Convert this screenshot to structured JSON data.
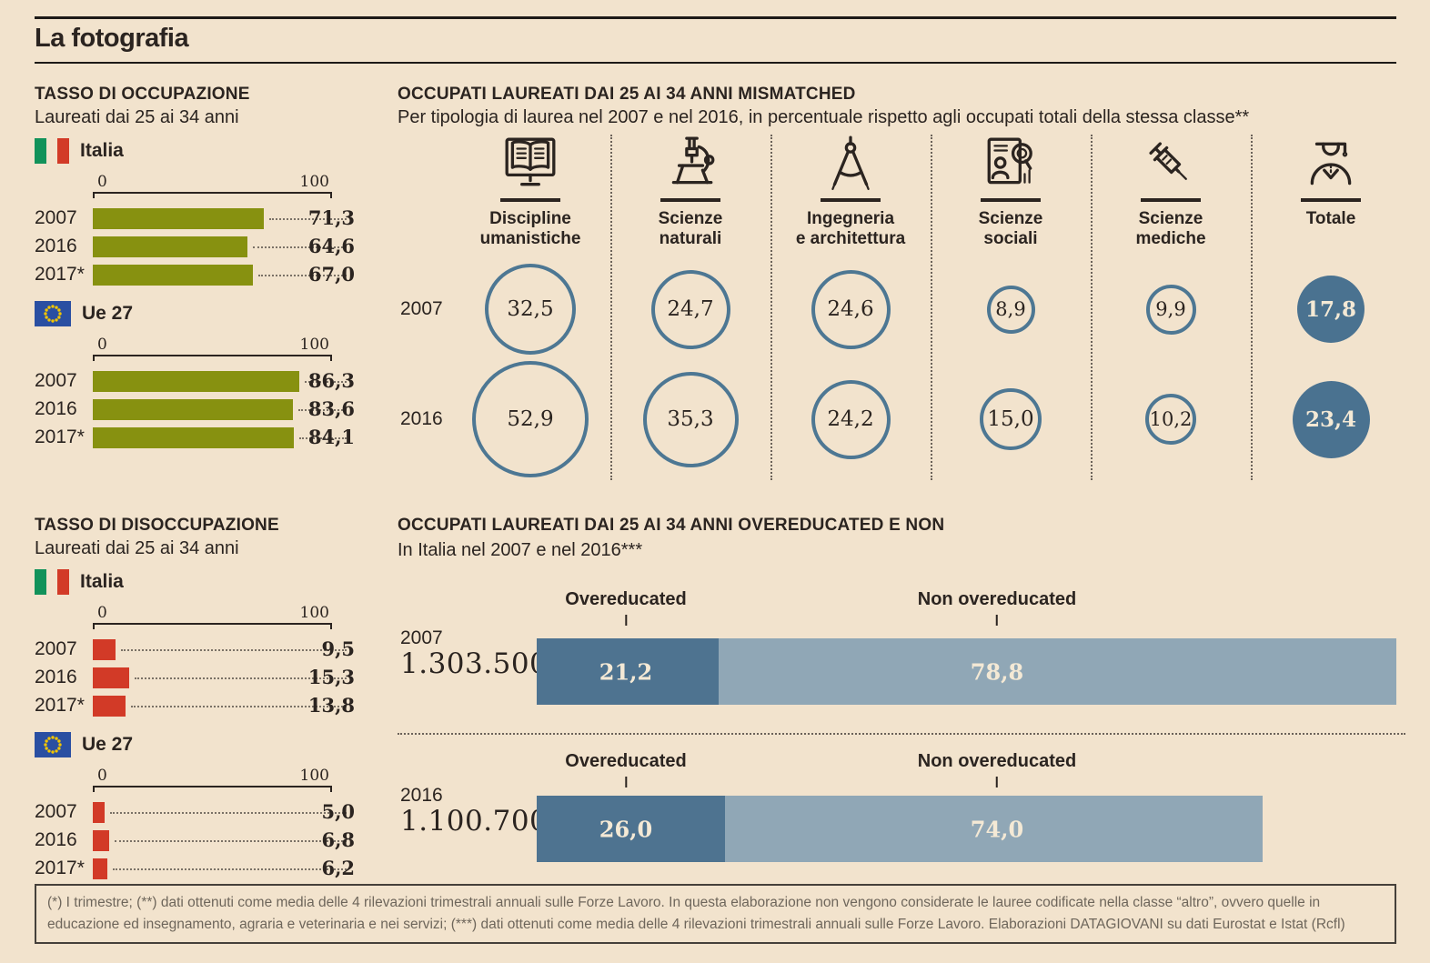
{
  "header": {
    "title": "La fotografia"
  },
  "occ": {
    "title": "TASSO DI OCCUPAZIONE",
    "subtitle": "Laureati dai 25 ai 34 anni",
    "axis": {
      "min": "0",
      "max": "100"
    },
    "groups": [
      {
        "legend": "Italia",
        "rows": [
          {
            "year": "2007",
            "value": 71.3,
            "label": "71,3"
          },
          {
            "year": "2016",
            "value": 64.6,
            "label": "64,6"
          },
          {
            "year": "2017*",
            "value": 67.0,
            "label": "67,0"
          }
        ]
      },
      {
        "legend": "Ue 27",
        "rows": [
          {
            "year": "2007",
            "value": 86.3,
            "label": "86,3"
          },
          {
            "year": "2016",
            "value": 83.6,
            "label": "83,6"
          },
          {
            "year": "2017*",
            "value": 84.1,
            "label": "84,1"
          }
        ]
      }
    ]
  },
  "dis": {
    "title": "TASSO DI DISOCCUPAZIONE",
    "subtitle": "Laureati dai 25 ai 34 anni",
    "axis": {
      "min": "0",
      "max": "100"
    },
    "groups": [
      {
        "legend": "Italia",
        "rows": [
          {
            "year": "2007",
            "value": 9.5,
            "label": "9,5"
          },
          {
            "year": "2016",
            "value": 15.3,
            "label": "15,3"
          },
          {
            "year": "2017*",
            "value": 13.8,
            "label": "13,8"
          }
        ]
      },
      {
        "legend": "Ue 27",
        "rows": [
          {
            "year": "2007",
            "value": 5.0,
            "label": "5,0"
          },
          {
            "year": "2016",
            "value": 6.8,
            "label": "6,8"
          },
          {
            "year": "2017*",
            "value": 6.2,
            "label": "6,2"
          }
        ]
      }
    ]
  },
  "mis": {
    "title": "OCCUPATI LAUREATI DAI 25 AI 34 ANNI MISMATCHED",
    "subtitle": "Per tipologia di laurea nel 2007 e nel 2016, in percentuale rispetto agli occupati totali della stessa classe**",
    "row_years": [
      "2007",
      "2016"
    ],
    "columns": [
      {
        "icon": "open-book-monitor-icon",
        "label": "Discipline\numanistiche",
        "v2007": 32.5,
        "l2007": "32,5",
        "v2016": 52.9,
        "l2016": "52,9"
      },
      {
        "icon": "microscope-icon",
        "label": "Scienze\nnaturali",
        "v2007": 24.7,
        "l2007": "24,7",
        "v2016": 35.3,
        "l2016": "35,3"
      },
      {
        "icon": "drafting-compass-icon",
        "label": "Ingegneria\ne architettura",
        "v2007": 24.6,
        "l2007": "24,6",
        "v2016": 24.2,
        "l2016": "24,2"
      },
      {
        "icon": "census-document-icon",
        "label": "Scienze\nsociali",
        "v2007": 8.9,
        "l2007": "8,9",
        "v2016": 15.0,
        "l2016": "15,0"
      },
      {
        "icon": "syringe-icon",
        "label": "Scienze\nmediche",
        "v2007": 9.9,
        "l2007": "9,9",
        "v2016": 10.2,
        "l2016": "10,2"
      },
      {
        "icon": "graduate-icon",
        "label": "Totale",
        "v2007": 17.8,
        "l2007": "17,8",
        "v2016": 23.4,
        "l2016": "23,4"
      }
    ]
  },
  "over": {
    "title": "OCCUPATI LAUREATI DAI 25 AI 34 ANNI OVEREDUCATED E NON",
    "subtitle": "In Italia nel 2007 e nel 2016***",
    "series_labels": [
      "Overeducated",
      "Non overeducated"
    ],
    "groups": [
      {
        "year": "2007",
        "total": "1.303.500",
        "total_value": 1303500,
        "over": 21.2,
        "over_label": "21,2",
        "non": 78.8,
        "non_label": "78,8"
      },
      {
        "year": "2016",
        "total": "1.100.700",
        "total_value": 1100700,
        "over": 26.0,
        "over_label": "26,0",
        "non": 74.0,
        "non_label": "74,0"
      }
    ]
  },
  "footnote": "(*) I trimestre; (**) dati ottenuti come media delle 4 rilevazioni trimestrali annuali sulle Forze Lavoro. In questa elaborazione non vengono considerate le lauree codificate nella classe “altro”, ovvero quelle in educazione ed insegnamento, agraria e veterinaria e nei servizi; (***) dati ottenuti come media delle 4 rilevazioni trimestrali annuali sulle Forze Lavoro. Elaborazioni DATAGIOVANI su dati Eurostat e Istat (Rcfl)",
  "colors": {
    "background": "#f2e3cd",
    "ink": "#2b2420",
    "olive_bar": "#879110",
    "red_bar": "#d23a27",
    "circle_stroke": "#4d7793",
    "circle_fill": "#4a7290",
    "stack_dark": "#4e7390",
    "stack_light": "#90a7b6",
    "cream_text": "#f4e9d5",
    "italy_green": "#12925a",
    "eu_blue": "#2a4fa2",
    "eu_star": "#f2c500"
  },
  "chart_data": [
    {
      "type": "bar",
      "orientation": "horizontal",
      "title": "TASSO DI OCCUPAZIONE",
      "subtitle": "Laureati dai 25 ai 34 anni",
      "categories": [
        "2007",
        "2016",
        "2017*"
      ],
      "xlim": [
        0,
        100
      ],
      "series": [
        {
          "name": "Italia",
          "values": [
            71.3,
            64.6,
            67.0
          ]
        },
        {
          "name": "Ue 27",
          "values": [
            86.3,
            83.6,
            84.1
          ]
        }
      ]
    },
    {
      "type": "bar",
      "orientation": "horizontal",
      "title": "TASSO DI DISOCCUPAZIONE",
      "subtitle": "Laureati dai 25 ai 34 anni",
      "categories": [
        "2007",
        "2016",
        "2017*"
      ],
      "xlim": [
        0,
        100
      ],
      "series": [
        {
          "name": "Italia",
          "values": [
            9.5,
            15.3,
            13.8
          ]
        },
        {
          "name": "Ue 27",
          "values": [
            5.0,
            6.8,
            6.2
          ]
        }
      ]
    },
    {
      "type": "table",
      "variant": "proportional-circles",
      "title": "OCCUPATI LAUREATI DAI 25 AI 34 ANNI MISMATCHED",
      "subtitle": "Per tipologia di laurea nel 2007 e nel 2016, in percentuale rispetto agli occupati totali della stessa classe**",
      "categories": [
        "Discipline umanistiche",
        "Scienze naturali",
        "Ingegneria e architettura",
        "Scienze sociali",
        "Scienze mediche",
        "Totale"
      ],
      "series": [
        {
          "name": "2007",
          "values": [
            32.5,
            24.7,
            24.6,
            8.9,
            9.9,
            17.8
          ]
        },
        {
          "name": "2016",
          "values": [
            52.9,
            35.3,
            24.2,
            15.0,
            10.2,
            23.4
          ]
        }
      ]
    },
    {
      "type": "bar",
      "variant": "stacked-horizontal",
      "title": "OCCUPATI LAUREATI DAI 25 AI 34 ANNI OVEREDUCATED E NON",
      "subtitle": "In Italia nel 2007 e nel 2016***",
      "categories": [
        "2007",
        "2016"
      ],
      "totals": [
        1303500,
        1100700
      ],
      "series": [
        {
          "name": "Overeducated",
          "values": [
            21.2,
            26.0
          ]
        },
        {
          "name": "Non overeducated",
          "values": [
            78.8,
            74.0
          ]
        }
      ]
    }
  ]
}
